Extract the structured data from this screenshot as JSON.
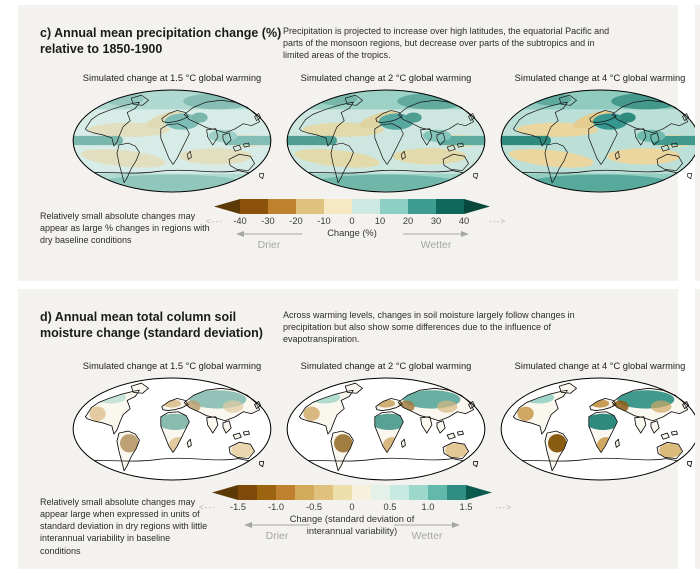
{
  "panel_c": {
    "title": "c) Annual mean precipitation change (%) relative to 1850-1900",
    "description": "Precipitation is projected to increase over high latitudes, the equatorial Pacific and parts of the monsoon regions, but decrease over parts of the subtropics and in limited areas of the tropics.",
    "maps": [
      {
        "subtitle": "Simulated change at 1.5 °C global warming"
      },
      {
        "subtitle": "Simulated change at 2 °C global warming"
      },
      {
        "subtitle": "Simulated change at 4 °C global warming"
      }
    ],
    "note": "Relatively small absolute changes may appear as large % changes in regions with dry baseline conditions",
    "colorbar": {
      "ticks": [
        "-40",
        "-30",
        "-20",
        "-10",
        "0",
        "10",
        "20",
        "30",
        "40"
      ],
      "colors": [
        "#8c510a",
        "#bf812d",
        "#dfc27d",
        "#f6e8c3",
        "#cdeae2",
        "#8dd0c3",
        "#3f9c92",
        "#10685c"
      ],
      "arrow_left_color": "#5c3a06",
      "arrow_right_color": "#07473c",
      "label": "Change (%)",
      "drier": "Drier",
      "wetter": "Wetter",
      "dash_left": "<---",
      "dash_right": "--->"
    }
  },
  "panel_d": {
    "title": "d) Annual mean total column soil moisture change (standard deviation)",
    "description": "Across warming levels, changes in soil moisture largely follow changes in precipitation but also show some differences due to the influence of evapotranspiration.",
    "maps": [
      {
        "subtitle": "Simulated change at 1.5 °C global warming"
      },
      {
        "subtitle": "Simulated change at 2 °C global warming"
      },
      {
        "subtitle": "Simulated change at 4 °C global warming"
      }
    ],
    "note": "Relatively small absolute changes may appear large when expressed in units of standard deviation in dry regions with little interannual variability in baseline conditions",
    "colorbar": {
      "ticks": [
        "-1.5",
        "-1.0",
        "-0.5",
        "0",
        "0.5",
        "1.0",
        "1.5"
      ],
      "colors": [
        "#7d4a09",
        "#9c6410",
        "#bf812d",
        "#d3a95c",
        "#dfc27d",
        "#eedeab",
        "#f6f0dd",
        "#e4f1ea",
        "#c7e9e0",
        "#9cd8cb",
        "#62b8ab",
        "#2f8d83"
      ],
      "arrow_left_color": "#5c3a06",
      "arrow_right_color": "#0b5a4e",
      "label": "Change (standard deviation of interannual variability)",
      "drier": "Drier",
      "wetter": "Wetter",
      "dash_left": "<---",
      "dash_right": "--->"
    }
  },
  "chart_data": [
    {
      "type": "heatmap",
      "panel": "c",
      "title": "Annual mean precipitation change (%) relative to 1850-1900",
      "map_levels": [
        "1.5 °C global warming",
        "2 °C global warming",
        "4 °C global warming"
      ],
      "units": "%",
      "scale_ticks": [
        -40,
        -30,
        -20,
        -10,
        0,
        10,
        20,
        30,
        40
      ],
      "scale_range": [
        -40,
        40
      ],
      "colormap": "brown (drier) to teal (wetter), open-ended arrows beyond ±40",
      "legend_labels": {
        "negative": "Drier",
        "positive": "Wetter",
        "axis": "Change (%)"
      },
      "summary": "Wetting over high latitudes, equatorial Pacific and monsoon regions; drying over parts of the subtropics and limited tropical areas; magnitude intensifies from 1.5 °C to 4 °C."
    },
    {
      "type": "heatmap",
      "panel": "d",
      "title": "Annual mean total column soil moisture change (standard deviation)",
      "map_levels": [
        "1.5 °C global warming",
        "2 °C global warming",
        "4 °C global warming"
      ],
      "units": "standard deviation of interannual variability",
      "scale_ticks": [
        -1.5,
        -1.0,
        -0.5,
        0,
        0.5,
        1.0,
        1.5
      ],
      "scale_range": [
        -1.5,
        1.5
      ],
      "colormap": "brown (drier) to teal (wetter), open-ended arrows beyond ±1.5",
      "legend_labels": {
        "negative": "Drier",
        "positive": "Wetter",
        "axis": "Change (standard deviation of interannual variability)"
      },
      "summary": "Soil-moisture changes over land largely follow precipitation changes (wetting in Sahel and high northern latitudes; drying in Amazonia, southern Africa, Mediterranean, Australia), strengthening with warming level."
    }
  ]
}
